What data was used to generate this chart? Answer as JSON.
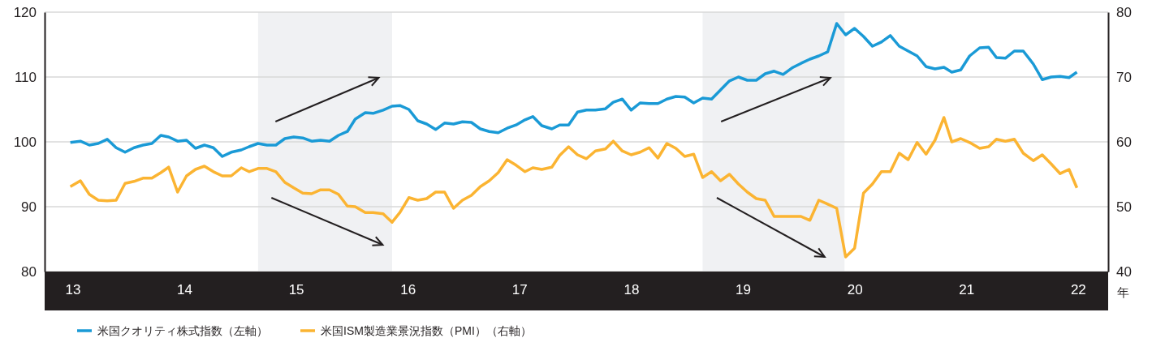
{
  "chart_data": {
    "type": "line",
    "xlabel": "年",
    "x": [
      12.98,
      13.07,
      13.15,
      13.23,
      13.31,
      13.39,
      13.47,
      13.55,
      13.63,
      13.71,
      13.79,
      13.86,
      13.94,
      14.02,
      14.1,
      14.18,
      14.26,
      14.34,
      14.42,
      14.51,
      14.58,
      14.66,
      14.74,
      14.82,
      14.9,
      14.98,
      15.06,
      15.14,
      15.22,
      15.3,
      15.38,
      15.46,
      15.53,
      15.62,
      15.69,
      15.78,
      15.86,
      15.93,
      16.01,
      16.09,
      16.17,
      16.25,
      16.33,
      16.41,
      16.49,
      16.57,
      16.65,
      16.73,
      16.81,
      16.89,
      16.97,
      17.05,
      17.12,
      17.2,
      17.29,
      17.36,
      17.44,
      17.52,
      17.6,
      17.68,
      17.77,
      17.84,
      17.92,
      18.0,
      18.08,
      18.16,
      18.24,
      18.32,
      18.4,
      18.48,
      18.56,
      18.64,
      18.72,
      18.8,
      18.88,
      18.96,
      19.04,
      19.12,
      19.2,
      19.28,
      19.36,
      19.44,
      19.52,
      19.6,
      19.68,
      19.76,
      19.84,
      19.92,
      20.0,
      20.08,
      20.16,
      20.24,
      20.32,
      20.4,
      20.48,
      20.56,
      20.64,
      20.72,
      20.8,
      20.87,
      20.95,
      21.03,
      21.12,
      21.2,
      21.27,
      21.35,
      21.43,
      21.51,
      21.6,
      21.68,
      21.76,
      21.84,
      21.92,
      21.99
    ],
    "series": [
      {
        "name": "米国クオリティ株式指数（左軸）",
        "color": "#1a9ad6",
        "values": [
          99.9,
          100.1,
          99.5,
          99.75,
          100.4,
          99.1,
          98.4,
          99.1,
          99.5,
          99.75,
          101.0,
          100.75,
          100.1,
          100.25,
          99.0,
          99.5,
          99.1,
          97.75,
          98.4,
          98.75,
          99.25,
          99.75,
          99.5,
          99.5,
          100.5,
          100.75,
          100.6,
          100.1,
          100.25,
          100.1,
          101.0,
          101.6,
          103.5,
          104.5,
          104.4,
          104.9,
          105.5,
          105.6,
          105.0,
          103.25,
          102.75,
          101.9,
          102.9,
          102.75,
          103.1,
          103.0,
          102.0,
          101.6,
          101.4,
          102.1,
          102.6,
          103.4,
          103.9,
          102.5,
          102.0,
          102.6,
          102.6,
          104.6,
          104.9,
          104.9,
          105.1,
          106.1,
          106.6,
          104.9,
          106.0,
          105.9,
          105.9,
          106.6,
          107.0,
          106.9,
          106.0,
          106.75,
          106.6,
          108.0,
          109.4,
          110.0,
          109.5,
          109.5,
          110.5,
          110.9,
          110.4,
          111.4,
          112.1,
          112.75,
          113.25,
          113.9,
          118.25,
          116.5,
          117.5,
          116.25,
          114.75,
          115.4,
          116.4,
          114.75,
          114.0,
          113.25,
          111.6,
          111.25,
          111.5,
          110.75,
          111.1,
          113.25,
          114.5,
          114.6,
          113.0,
          112.9,
          114.0,
          114.0,
          112.0,
          109.6,
          110.0,
          110.1,
          109.9,
          110.75
        ]
      },
      {
        "name": "米国ISM製造業景況指数（PMI）（右軸）",
        "color": "#fbb432",
        "axis": "y2",
        "values": [
          53.1,
          54.0,
          51.9,
          51.0,
          50.9,
          51.0,
          53.6,
          53.9,
          54.4,
          54.4,
          55.25,
          56.1,
          52.25,
          54.75,
          55.75,
          56.25,
          55.4,
          54.75,
          54.75,
          56.0,
          55.4,
          55.9,
          55.9,
          55.4,
          53.75,
          52.9,
          52.1,
          52.0,
          52.6,
          52.6,
          51.9,
          50.1,
          50.0,
          49.1,
          49.1,
          48.9,
          47.6,
          49.1,
          51.4,
          51.0,
          51.25,
          52.25,
          52.25,
          49.75,
          51.0,
          51.75,
          53.1,
          54.0,
          55.25,
          57.25,
          56.4,
          55.4,
          56.0,
          55.75,
          56.1,
          57.9,
          59.25,
          58.0,
          57.4,
          58.6,
          58.9,
          60.1,
          58.6,
          58.0,
          58.4,
          59.1,
          57.5,
          59.75,
          59.0,
          57.75,
          58.1,
          54.5,
          55.4,
          54.0,
          55.0,
          53.5,
          52.25,
          51.25,
          51.0,
          48.5,
          48.5,
          48.5,
          48.5,
          47.9,
          51.0,
          50.4,
          49.75,
          42.25,
          43.6,
          52.1,
          53.5,
          55.4,
          55.4,
          58.25,
          57.25,
          59.9,
          58.1,
          60.25,
          63.75,
          60.0,
          60.5,
          59.9,
          59.0,
          59.25,
          60.4,
          60.1,
          60.4,
          58.25,
          57.1,
          58.0,
          56.6,
          55.1,
          55.75,
          52.9
        ]
      }
    ],
    "xlim": [
      12.75,
      22.27
    ],
    "xticks": [
      13,
      14,
      15,
      16,
      17,
      18,
      19,
      20,
      21,
      22
    ],
    "ylim": [
      80,
      120
    ],
    "yticks": [
      80,
      90,
      100,
      110,
      120
    ],
    "y2lim": [
      40,
      80
    ],
    "y2ticks": [
      40,
      50,
      60,
      70,
      80
    ],
    "bands": [
      {
        "axis": "x",
        "from": 14.66,
        "to": 15.86,
        "color": "#f0f1f3"
      },
      {
        "axis": "x",
        "from": 18.64,
        "to": 19.91,
        "color": "#f0f1f3"
      }
    ],
    "grid": "y",
    "legend": "bottom",
    "line_style": "solid",
    "marker": "none"
  }
}
